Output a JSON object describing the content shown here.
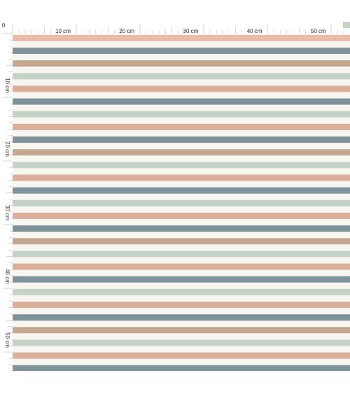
{
  "ruler": {
    "origin": "0",
    "top_labels": [
      "10 cm",
      "20 cm",
      "30 cm",
      "40 cm",
      "50 cm"
    ],
    "left_labels": [
      "10 cm",
      "20 cm",
      "30 cm",
      "40 cm",
      "50 cm"
    ]
  }
}
